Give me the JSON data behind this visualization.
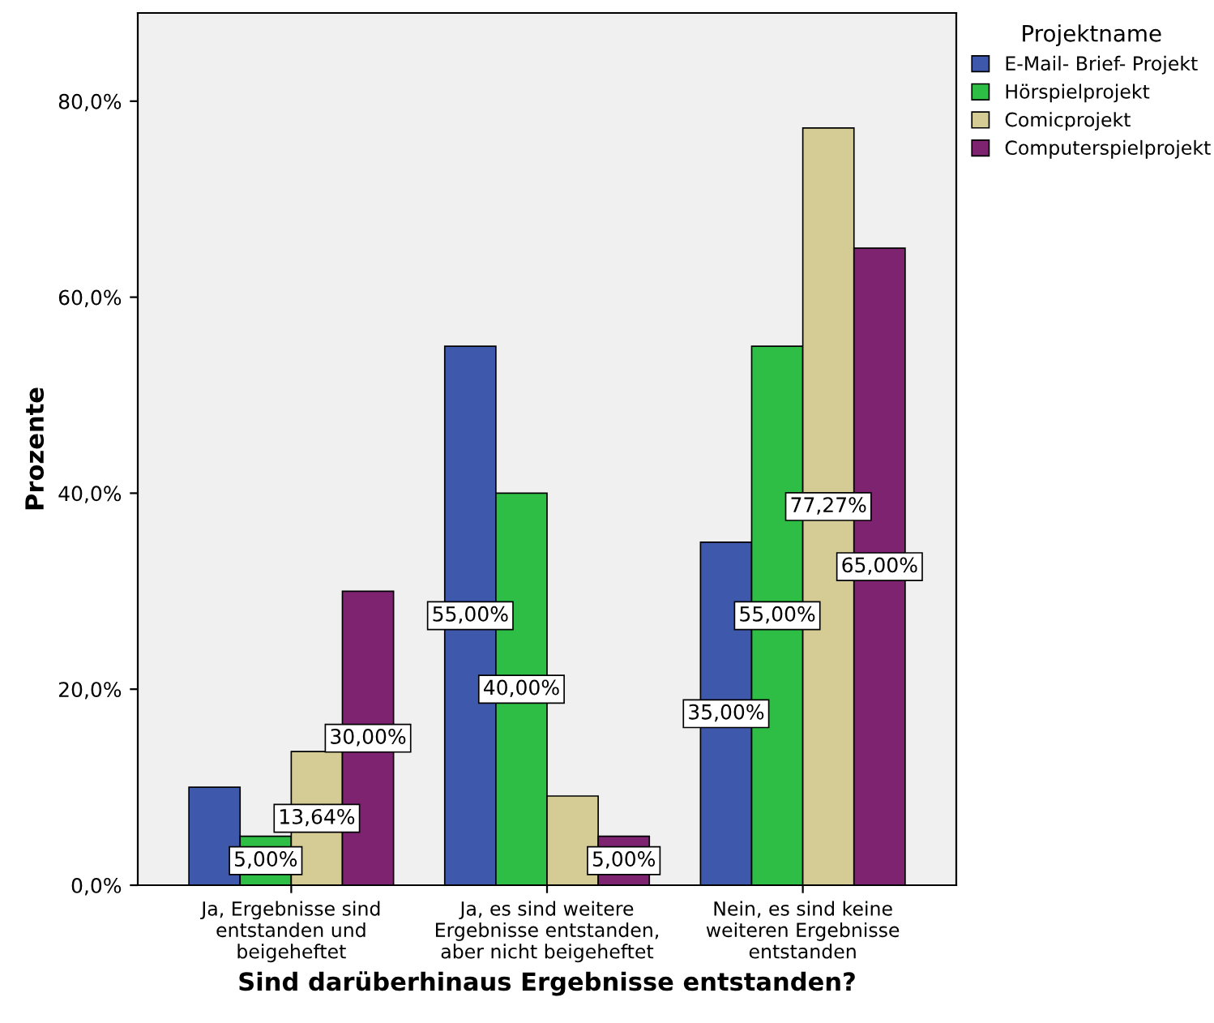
{
  "chart_data": {
    "type": "bar",
    "xlabel": "Sind darüberhinaus Ergebnisse entstanden?",
    "ylabel": "Prozente",
    "legend_title": "Projektname",
    "categories": [
      "Ja, Ergebnisse sind\nentstanden und\nbeigeheftet",
      "Ja, es sind weitere\nErgebnisse entstanden,\naber nicht beigeheftet",
      "Nein, es sind keine\nweiteren Ergebnisse\nentstanden"
    ],
    "series": [
      {
        "name": "E-Mail- Brief- Projekt",
        "color": "#3e58ac",
        "values": [
          10,
          55,
          35
        ],
        "value_labels": [
          null,
          "55,00%",
          "35,00%"
        ]
      },
      {
        "name": "Hörspielprojekt",
        "color": "#2fbe45",
        "values": [
          5,
          40,
          55
        ],
        "value_labels": [
          "5,00%",
          "40,00%",
          "55,00%"
        ]
      },
      {
        "name": "Comicprojekt",
        "color": "#d4cc94",
        "values": [
          13.64,
          9.1,
          77.27
        ],
        "value_labels": [
          "13,64%",
          null,
          "77,27%"
        ]
      },
      {
        "name": "Computerspielprojekt",
        "color": "#7d2370",
        "values": [
          30,
          5,
          65
        ],
        "value_labels": [
          "30,00%",
          "5,00%",
          "65,00%"
        ]
      }
    ],
    "ylim": [
      0,
      89
    ],
    "yticks": [
      {
        "value": 0,
        "label": "0,0%"
      },
      {
        "value": 20,
        "label": "20,0%"
      },
      {
        "value": 40,
        "label": "40,0%"
      },
      {
        "value": 60,
        "label": "60,0%"
      },
      {
        "value": 80,
        "label": "80,0%"
      }
    ],
    "grid": false,
    "legend": "top right"
  }
}
